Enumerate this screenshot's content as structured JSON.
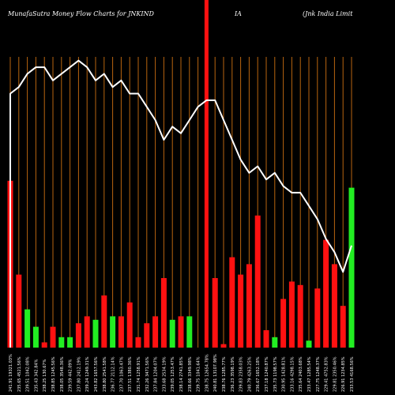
{
  "header": {
    "title_left": "MunafaSutra  Money Flow  Charts for JNKIND",
    "title_mid": "IA",
    "title_right": "(Jnk India  Limit"
  },
  "colors": {
    "background": "#000000",
    "up_bar": "#22ee22",
    "down_bar": "#ff1111",
    "gridline": "#b8650f",
    "price_line": "#ffffff",
    "highlight_bar": "#ff1111"
  },
  "chart_data": {
    "type": "bar",
    "highlight_index": 23,
    "price_line_y": [
      7,
      6,
      4,
      3,
      3,
      5,
      4,
      3,
      2,
      3,
      5,
      4,
      6,
      5,
      7,
      7,
      9,
      11,
      14,
      12,
      13,
      11,
      9,
      8,
      8,
      11,
      14,
      17,
      19,
      18,
      20,
      19,
      21,
      22,
      22,
      24,
      26,
      29,
      31,
      34,
      30
    ],
    "price_ylim": [
      0,
      50
    ],
    "bar_ylim": [
      0,
      100
    ],
    "series": [
      {
        "categories": [
          "241.91 19321.03%",
          "235.65 4521.56%",
          "239.51 1042.08%",
          "235.43 342.84%",
          "238.25 130.67%",
          "238.85 1245.56%",
          "238.05 3548.36%",
          "239.59 442.09%",
          "237.80 2412.19%",
          "239.24 1249.31%",
          "243.82 1657.56%",
          "238.80 2541.58%",
          "236.77 2112.14%",
          "237.70 1063.47%",
          "237.51 1380.36%",
          "231.74 1258.91%",
          "232.26 3471.56%",
          "237.84 1204.07%",
          "233.68 2534.19%",
          "239.05 1253.47%",
          "238.14 2741.85%",
          "238.66 3349.98%",
          "239.75 1041.64%",
          "238.75 12654.78%",
          "240.81 13107.98%",
          "238.76 1285.77%",
          "236.23 3598.19%",
          "239.83 2358.03%",
          "240.79 4263.25%",
          "236.67 1652.18%",
          "237.18 1240.87%",
          "235.73 1198.57%",
          "230.95 1428.81%",
          "233.16 4298.15%",
          "235.64 2403.68%",
          "233.47 1285.54%",
          "227.75 1248.37%",
          "229.41 4752.83%",
          "229.81 2350.46%",
          "226.91 1234.85%",
          "233.53 4168.56%"
        ],
        "values": [
          48,
          21,
          11,
          6,
          1.5,
          6,
          3,
          3,
          7,
          9,
          8,
          15,
          9,
          9,
          13,
          3,
          7,
          9,
          20,
          8,
          9,
          9,
          0,
          100,
          20,
          1,
          26,
          21,
          24,
          38,
          5,
          3,
          14,
          19,
          18,
          2,
          17,
          31,
          24,
          12,
          46
        ],
        "colors": [
          "red",
          "red",
          "green",
          "green",
          "red",
          "red",
          "green",
          "green",
          "red",
          "red",
          "green",
          "red",
          "green",
          "red",
          "red",
          "red",
          "red",
          "red",
          "red",
          "green",
          "red",
          "green",
          "green",
          "red",
          "red",
          "red",
          "red",
          "red",
          "red",
          "red",
          "red",
          "green",
          "red",
          "red",
          "red",
          "green",
          "red",
          "red",
          "red",
          "red",
          "green"
        ]
      }
    ]
  }
}
